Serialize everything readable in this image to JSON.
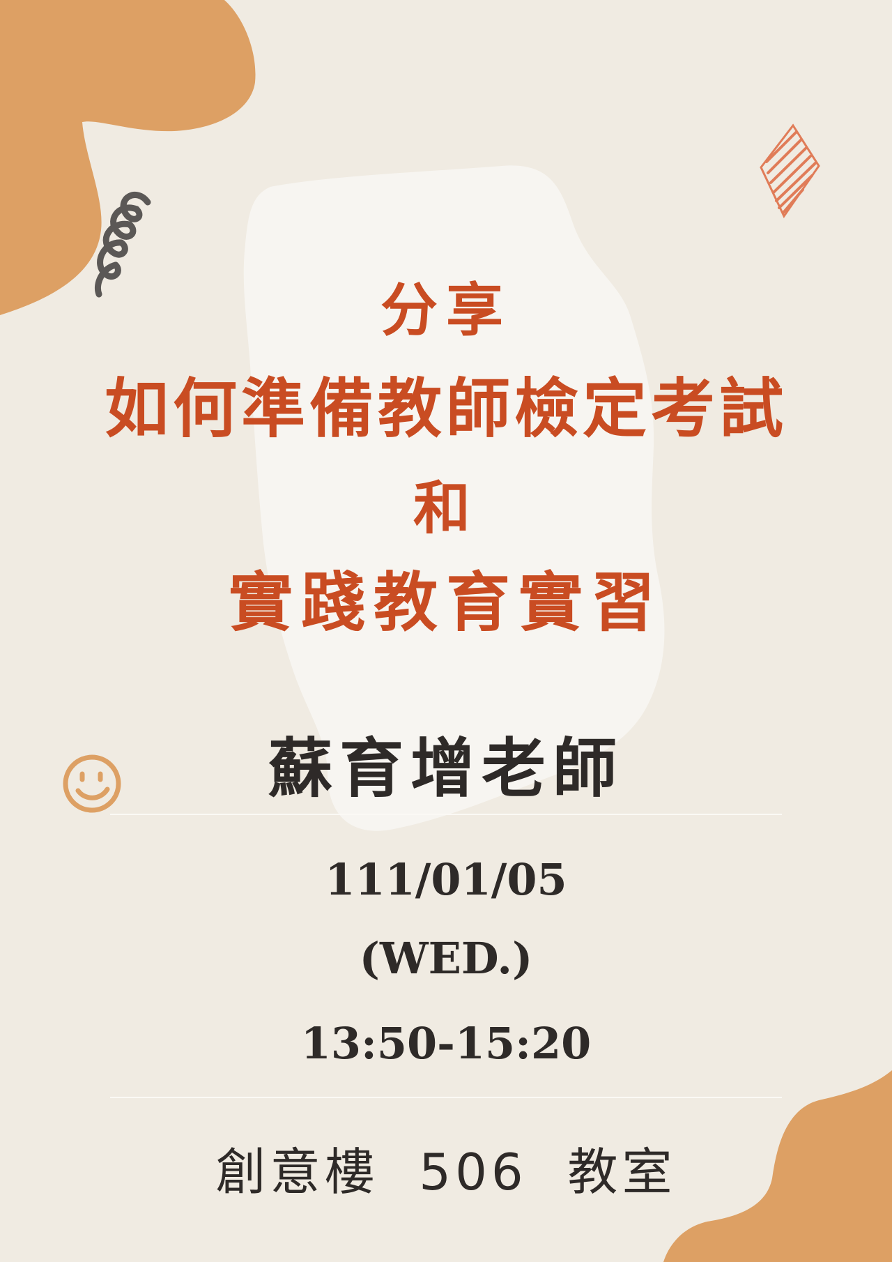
{
  "poster": {
    "title_line1": "分享",
    "title_line2": "如何準備教師檢定考試",
    "title_line3": "和",
    "title_line4": "實踐教育實習",
    "speaker": "蘇育增老師",
    "date": "111/01/05",
    "weekday": "(WED.)",
    "time": "13:50-15:20",
    "venue": "創意樓  506  教室"
  },
  "colors": {
    "background": "#f0ebe2",
    "title": "#c94c22",
    "text": "#2e2a28",
    "blob_orange": "#dda064",
    "blob_white": "#f7f5f1",
    "diamond": "#e07c58",
    "spring": "#5b5856"
  },
  "decorations": {
    "spring_icon": "spring-squiggle-icon",
    "diamond_icon": "hatched-diamond-icon",
    "smiley_icon": "smiley-face-icon"
  }
}
